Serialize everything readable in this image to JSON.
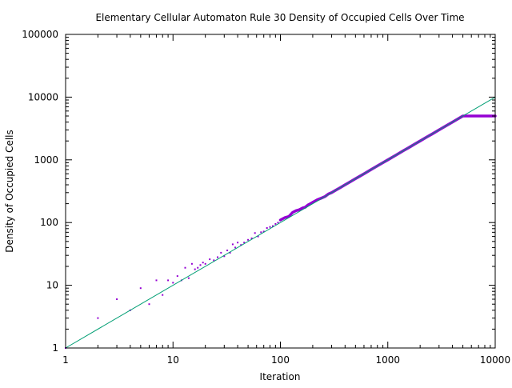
{
  "chart_data": {
    "type": "scatter",
    "title": "Elementary Cellular Automaton Rule 30 Density of Occupied Cells Over Time",
    "xlabel": "Iteration",
    "ylabel": "Density of Occupied Cells",
    "x_scale": "log",
    "y_scale": "log",
    "xlim": [
      1,
      10000
    ],
    "ylim": [
      1,
      100000
    ],
    "grid": false,
    "legend": "none",
    "x_ticks": [
      {
        "value": 1,
        "label": "1"
      },
      {
        "value": 10,
        "label": "10"
      },
      {
        "value": 100,
        "label": "100"
      },
      {
        "value": 1000,
        "label": "1000"
      },
      {
        "value": 10000,
        "label": "10000"
      }
    ],
    "y_ticks": [
      {
        "value": 1,
        "label": "1"
      },
      {
        "value": 10,
        "label": "10"
      },
      {
        "value": 100,
        "label": "100"
      },
      {
        "value": 1000,
        "label": "1000"
      },
      {
        "value": 10000,
        "label": "10000"
      },
      {
        "value": 100000,
        "label": "100000"
      }
    ],
    "series": [
      {
        "kind": "points",
        "color": "#9400d3",
        "x": [
          1,
          2,
          3,
          4,
          5,
          6,
          7,
          8,
          9,
          10,
          11,
          12,
          13,
          14,
          15,
          16,
          17,
          18,
          19,
          20,
          22,
          24,
          26,
          28,
          30,
          32,
          34,
          36,
          38,
          40,
          43,
          46,
          50,
          54,
          58,
          62,
          66,
          70,
          75,
          80,
          85,
          90,
          95,
          100,
          110,
          120,
          130,
          140,
          150,
          160,
          170,
          180,
          190,
          200,
          220,
          240,
          260,
          280,
          300,
          330,
          360,
          400,
          450,
          500,
          550,
          600,
          700,
          800,
          900,
          1000,
          1200,
          1400,
          1600,
          1800,
          2000,
          2300,
          2600,
          3000,
          3500,
          4000,
          4500,
          4900,
          5000,
          5500,
          6000,
          6500,
          7000,
          7500,
          8000,
          8500,
          9000,
          9500,
          10000
        ],
        "y": [
          1,
          3,
          6,
          4,
          9,
          5,
          12,
          7,
          12,
          11,
          14,
          12,
          19,
          13,
          22,
          18,
          19,
          21,
          23,
          22,
          26,
          25,
          28,
          33,
          29,
          36,
          33,
          45,
          40,
          48,
          44,
          48,
          53,
          56,
          68,
          60,
          70,
          72,
          82,
          85,
          88,
          95,
          100,
          110,
          120,
          125,
          145,
          155,
          160,
          170,
          175,
          190,
          200,
          210,
          230,
          245,
          260,
          285,
          300,
          330,
          360,
          400,
          450,
          500,
          550,
          600,
          700,
          800,
          900,
          1000,
          1200,
          1400,
          1600,
          1800,
          2000,
          2300,
          2600,
          3000,
          3500,
          4000,
          4500,
          4900,
          5000,
          5000,
          5000,
          5000,
          5000,
          5000,
          5000,
          5000,
          5000,
          5000,
          5000
        ]
      },
      {
        "kind": "line",
        "color": "#009e73",
        "x": [
          1,
          10000
        ],
        "y": [
          1,
          10000
        ]
      }
    ]
  }
}
